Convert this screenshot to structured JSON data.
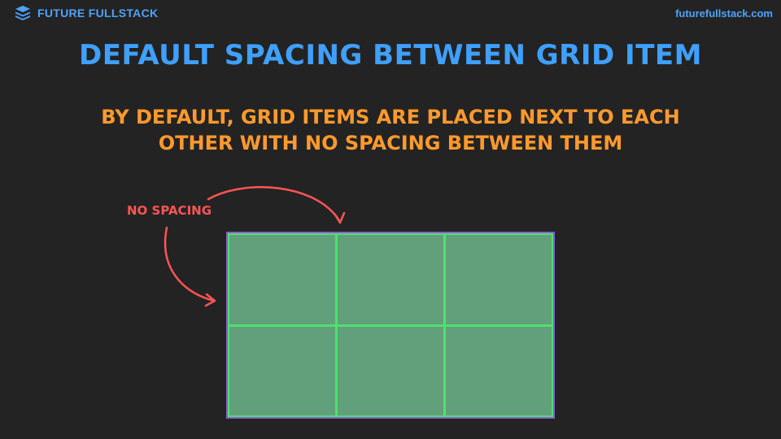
{
  "header": {
    "brand_name": "FUTURE FULLSTACK",
    "logo_icon": "layers-stack-icon",
    "site_url": "futurefullstack.com"
  },
  "slide": {
    "title": "Default spacing between grid item",
    "subtitle": "By default, grid items are placed next to each other with no spacing between them",
    "annotation": "No spacing"
  },
  "grid_demo": {
    "rows": 2,
    "columns": 3,
    "cell_count": 6
  },
  "colors": {
    "background": "#232323",
    "title": "#3fa0ff",
    "subtitle": "#ff9a2e",
    "annotation": "#ff5555",
    "grid_border": "#8a5cd6",
    "grid_lines": "#4fe06e",
    "cell_fill": "#61a07b"
  }
}
